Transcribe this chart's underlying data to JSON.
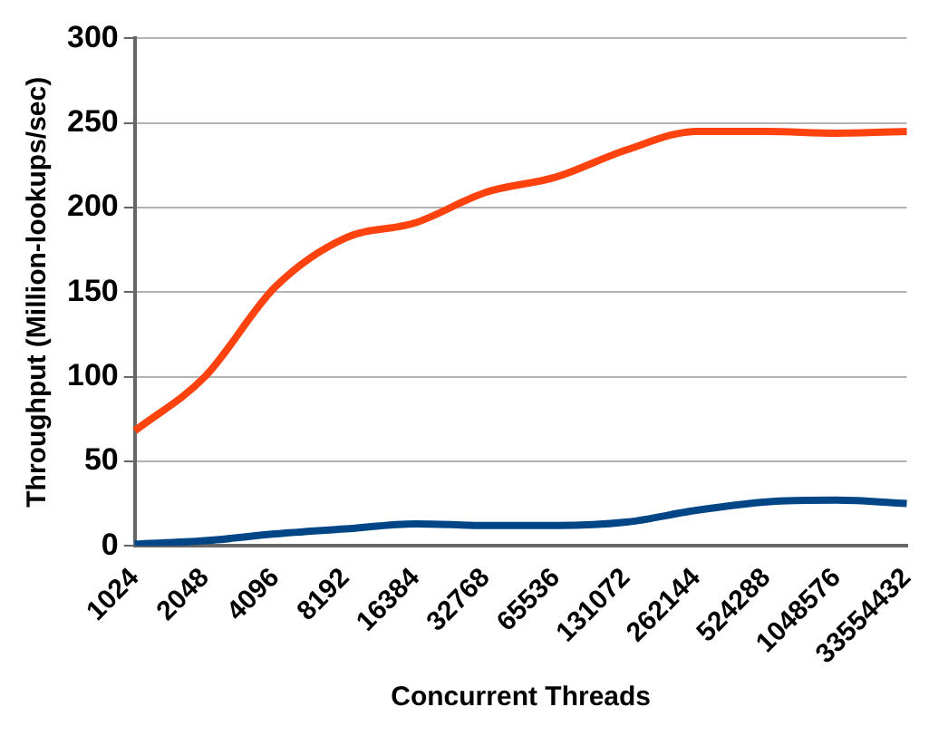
{
  "chart_data": {
    "type": "line",
    "xlabel": "Concurrent Threads",
    "ylabel": "Throughput (Million-lookups/sec)",
    "categories": [
      "1024",
      "2048",
      "4096",
      "8192",
      "16384",
      "32768",
      "65536",
      "131072",
      "262144",
      "524288",
      "1048576",
      "33554432"
    ],
    "series": [
      {
        "color": "#ff420e",
        "values": [
          68,
          100,
          153,
          182,
          191,
          209,
          218,
          234,
          245,
          245,
          244,
          245
        ]
      },
      {
        "color": "#004586",
        "values": [
          1,
          3,
          7,
          10,
          13,
          12,
          12,
          14,
          21,
          26,
          27,
          25
        ]
      }
    ],
    "ylim": [
      0,
      300
    ],
    "yticks": [
      0,
      50,
      100,
      150,
      200,
      250,
      300
    ],
    "grid": "y",
    "legend": false,
    "marker": "none",
    "line_style": "solid"
  }
}
